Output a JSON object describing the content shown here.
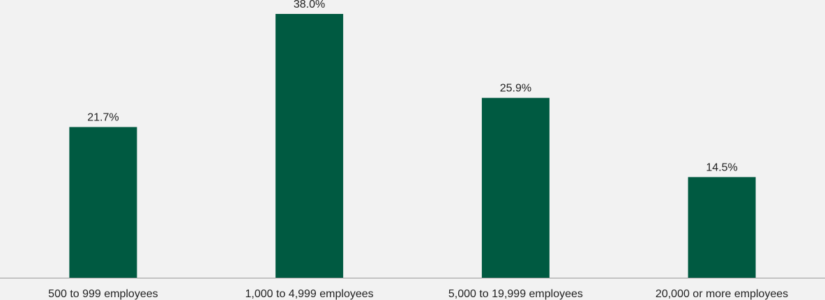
{
  "colors": {
    "background": "#f2f2f2",
    "bar": "#005a41",
    "axis": "#999999",
    "text": "#222222"
  },
  "chart_data": {
    "type": "bar",
    "categories": [
      "500 to 999 employees",
      "1,000 to 4,999 employees",
      "5,000 to 19,999 employees",
      "20,000 or more employees"
    ],
    "values": [
      21.7,
      38.0,
      25.9,
      14.5
    ],
    "value_labels": [
      "21.7%",
      "38.0%",
      "25.9%",
      "14.5%"
    ],
    "ylim": [
      0,
      40
    ],
    "grid": false,
    "legend": "none"
  }
}
